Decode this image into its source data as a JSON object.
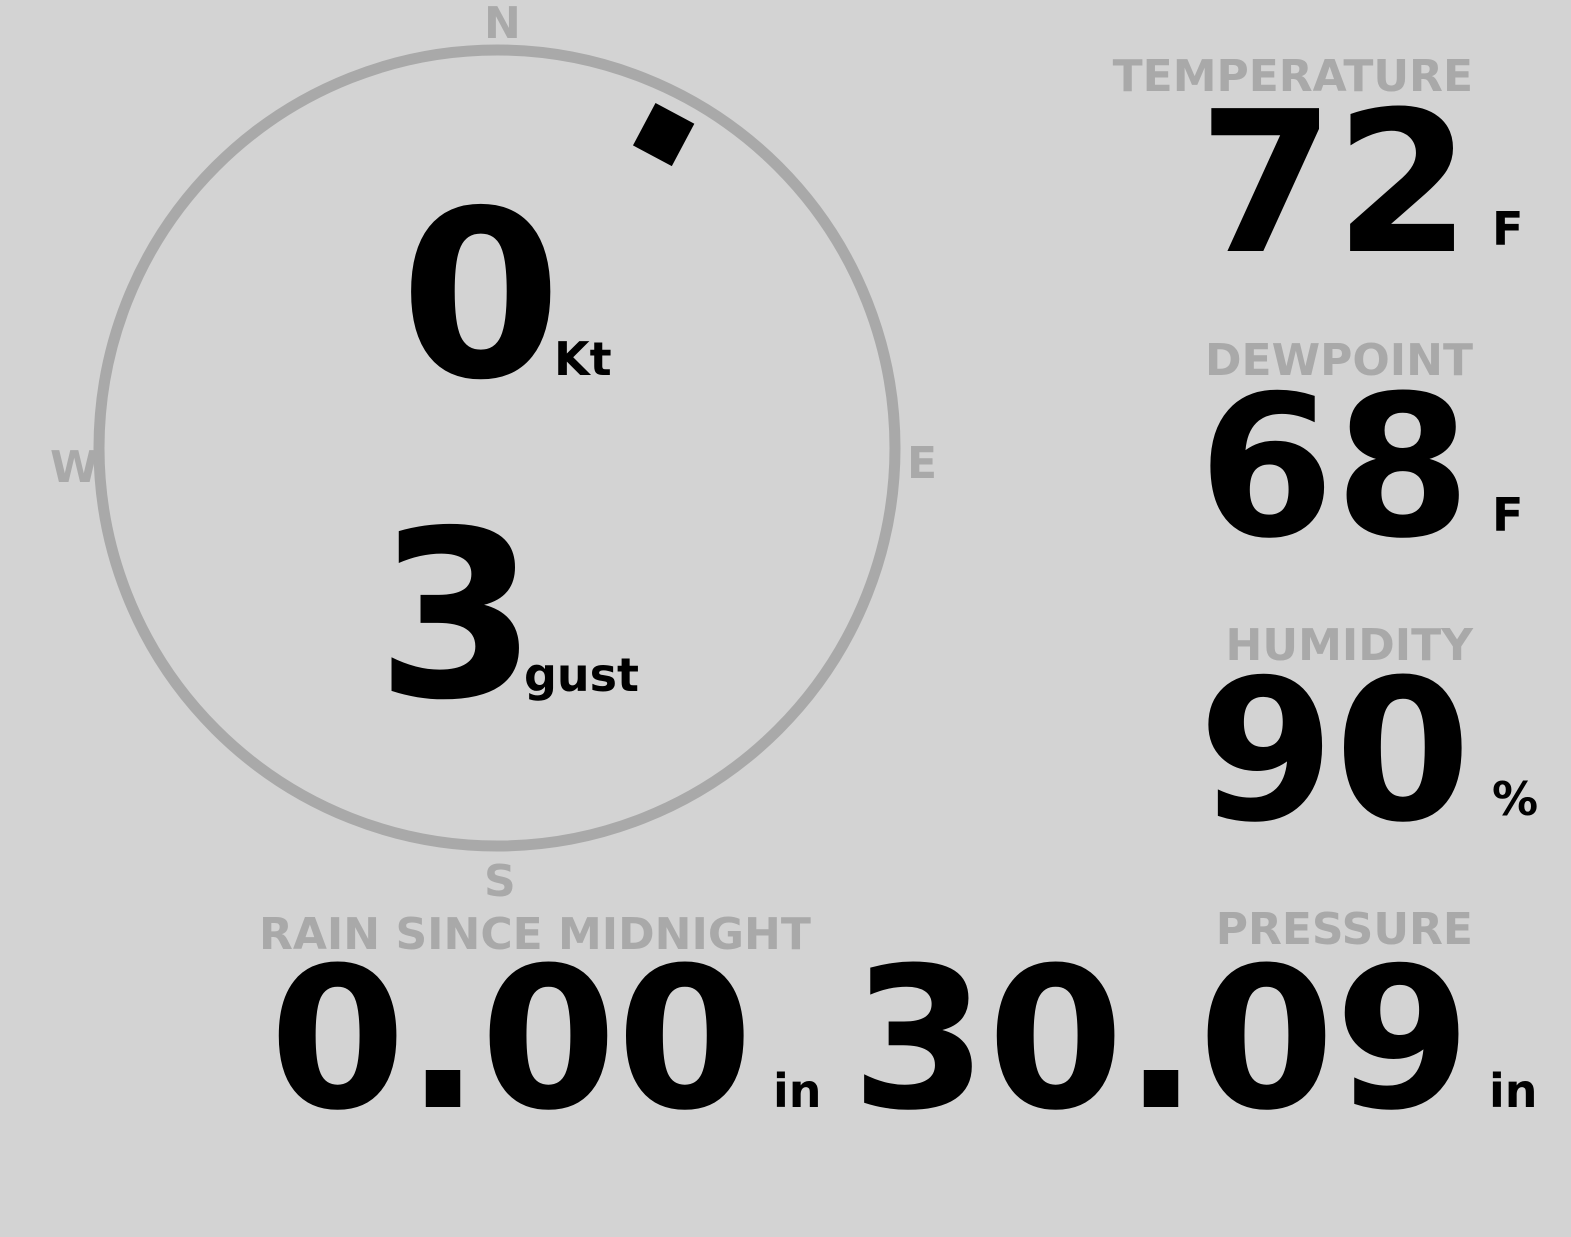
{
  "wind": {
    "compass": {
      "north": "N",
      "east": "E",
      "south": "S",
      "west": "W"
    },
    "direction_deg": 28,
    "speed": "0",
    "speed_unit": "Kt",
    "gust": "3",
    "gust_unit": "gust"
  },
  "temperature": {
    "label": "TEMPERATURE",
    "value": "72",
    "unit": "F"
  },
  "dewpoint": {
    "label": "DEWPOINT",
    "value": "68",
    "unit": "F"
  },
  "humidity": {
    "label": "HUMIDITY",
    "value": "90",
    "unit": "%"
  },
  "rain": {
    "label": "RAIN SINCE MIDNIGHT",
    "value": "0.00",
    "unit": "in"
  },
  "pressure": {
    "label": "PRESSURE",
    "value": "30.09",
    "unit": "in"
  },
  "colors": {
    "background": "#d3d3d3",
    "muted": "#a9a9a9",
    "value": "#000000"
  }
}
